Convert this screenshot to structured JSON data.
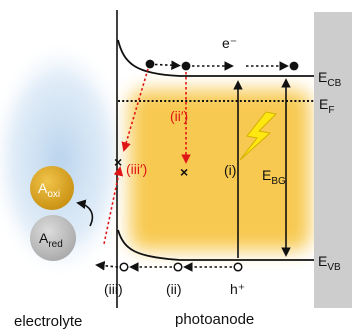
{
  "diagram": {
    "labels": {
      "electron": "e⁻",
      "hole": "h⁺",
      "conduction_band_main": "E",
      "conduction_band_sub": "CB",
      "fermi_main": "E",
      "fermi_sub": "F",
      "valence_band_main": "E",
      "valence_band_sub": "VB",
      "bandgap_main": "E",
      "bandgap_sub": "BG",
      "path_i": "(i)",
      "path_ii": "(ii)",
      "path_iii": "(iii)",
      "path_ii_prime": "(ii′)",
      "path_iii_prime": "(iii′)",
      "oxidized_main": "A",
      "oxidized_sub": "oxi",
      "reduced_main": "A",
      "reduced_sub": "red"
    },
    "regions": {
      "electrolyte": "electrolyte",
      "photoanode": "photoanode"
    },
    "colors": {
      "electrolyte_glow": "#bcd6ee",
      "photoanode_glow": "#f6c033",
      "band_line": "#111111",
      "recombination": "#e01515",
      "lightning": "#ffe812",
      "metal_contact": "#cdcdcd",
      "oxidized_species": "#e0a81c",
      "reduced_species": "#c6c6c6"
    }
  }
}
